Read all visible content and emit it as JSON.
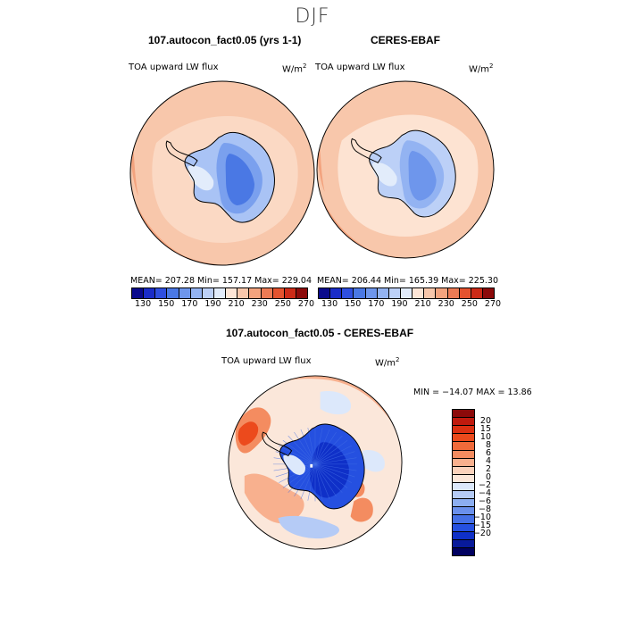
{
  "figure": {
    "season": "DJF"
  },
  "panels": {
    "model": {
      "title": "107.autocon_fact0.05 (yrs 1-1)",
      "variable": "TOA upward LW flux",
      "units_base": "W/m",
      "units_exp": "2",
      "stats": {
        "mean": "207.28",
        "min": "157.17",
        "max": "229.04",
        "text": "MEAN= 207.28   Min= 157.17   Max= 229.04"
      },
      "ice_colors": [
        "#4a78e4",
        "#7aa0ee",
        "#a9c3f5"
      ]
    },
    "obs": {
      "title": "CERES-EBAF",
      "variable": "TOA upward LW flux",
      "units_base": "W/m",
      "units_exp": "2",
      "stats": {
        "mean": "206.44",
        "min": "165.39",
        "max": "225.30",
        "text": "MEAN= 206.44   Min= 165.39   Max= 225.30"
      },
      "ice_colors": [
        "#6e96ec",
        "#93b3f2",
        "#bcd0f7"
      ]
    },
    "diff": {
      "title": "107.autocon_fact0.05 - CERES-EBAF",
      "variable": "TOA upward LW flux",
      "units_base": "W/m",
      "units_exp": "2",
      "stats": {
        "min": "-14.07",
        "max": "13.86",
        "text": "MIN = −14.07 MAX =  13.86"
      }
    }
  },
  "colorbar_abs": {
    "ticks": [
      "130",
      "150",
      "170",
      "190",
      "210",
      "230",
      "250",
      "270"
    ],
    "colors": [
      "#0a0a8c",
      "#1a2cc8",
      "#2f4fe0",
      "#4a78e4",
      "#6e96ec",
      "#93b3f2",
      "#bcd0f7",
      "#e2ecfb",
      "#fde5d6",
      "#f8c7ab",
      "#f3a37e",
      "#ed7b55",
      "#e4532f",
      "#cc2a17",
      "#8c0a0a"
    ]
  },
  "colorbar_diff": {
    "labels": [
      "20",
      "15",
      "10",
      "8",
      "6",
      "4",
      "2",
      "0",
      "−2",
      "−4",
      "−6",
      "−8",
      "−10",
      "−15",
      "−20"
    ],
    "colors": [
      "#8c0a0a",
      "#c01a0e",
      "#dc3012",
      "#ec4a1c",
      "#f06a3a",
      "#f48c60",
      "#f8b08e",
      "#fad2bc",
      "#fbe7da",
      "#dce8fb",
      "#b5cbf6",
      "#8caef1",
      "#6a90ec",
      "#4570e6",
      "#2550e0",
      "#0f30c8",
      "#081a9a",
      "#000060"
    ]
  },
  "map_colors": {
    "ocean": "#f8c7ab",
    "warm": "#f3a37e",
    "cool": "#fde5d6",
    "coast": "#000000"
  }
}
